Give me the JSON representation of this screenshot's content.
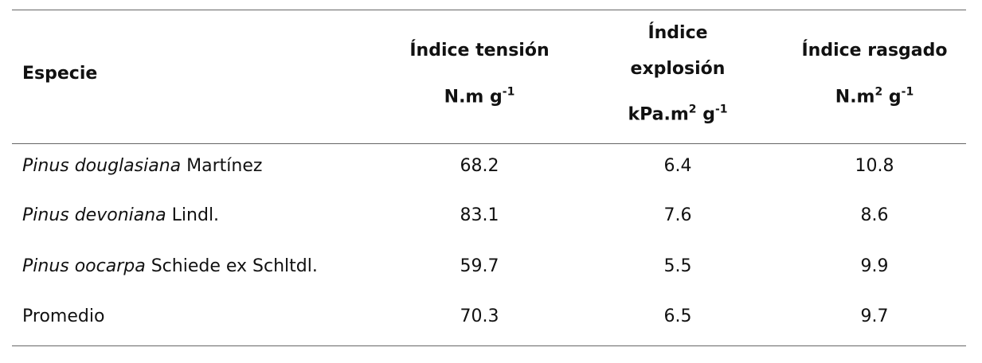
{
  "table": {
    "header": [
      {
        "lines": [
          "Especie"
        ]
      },
      {
        "lines": [
          "Índice tensión"
        ],
        "unit": [
          {
            "text": "N.m g"
          },
          {
            "sup": "-1"
          }
        ]
      },
      {
        "lines": [
          "Índice",
          "explosión"
        ],
        "unit": [
          {
            "text": "kPa.m"
          },
          {
            "sup": "2"
          },
          {
            "text": " g"
          },
          {
            "sup": "-1"
          }
        ]
      },
      {
        "lines": [
          "Índice rasgado"
        ],
        "unit": [
          {
            "text": "N.m"
          },
          {
            "sup": "2"
          },
          {
            "text": " g"
          },
          {
            "sup": "-1"
          }
        ]
      }
    ],
    "rows": [
      {
        "species": {
          "italic": "Pinus douglasiana",
          "plain": "Martínez"
        },
        "values": [
          68.2,
          6.4,
          10.8
        ]
      },
      {
        "species": {
          "italic": "Pinus devoniana",
          "plain": "Lindl."
        },
        "values": [
          83.1,
          7.6,
          8.6
        ]
      },
      {
        "species": {
          "italic": "Pinus oocarpa",
          "plain": "Schiede ex Schltdl."
        },
        "values": [
          59.7,
          5.5,
          9.9
        ]
      },
      {
        "species": {
          "plain": "Promedio"
        },
        "values": [
          70.3,
          6.5,
          9.7
        ]
      }
    ]
  }
}
